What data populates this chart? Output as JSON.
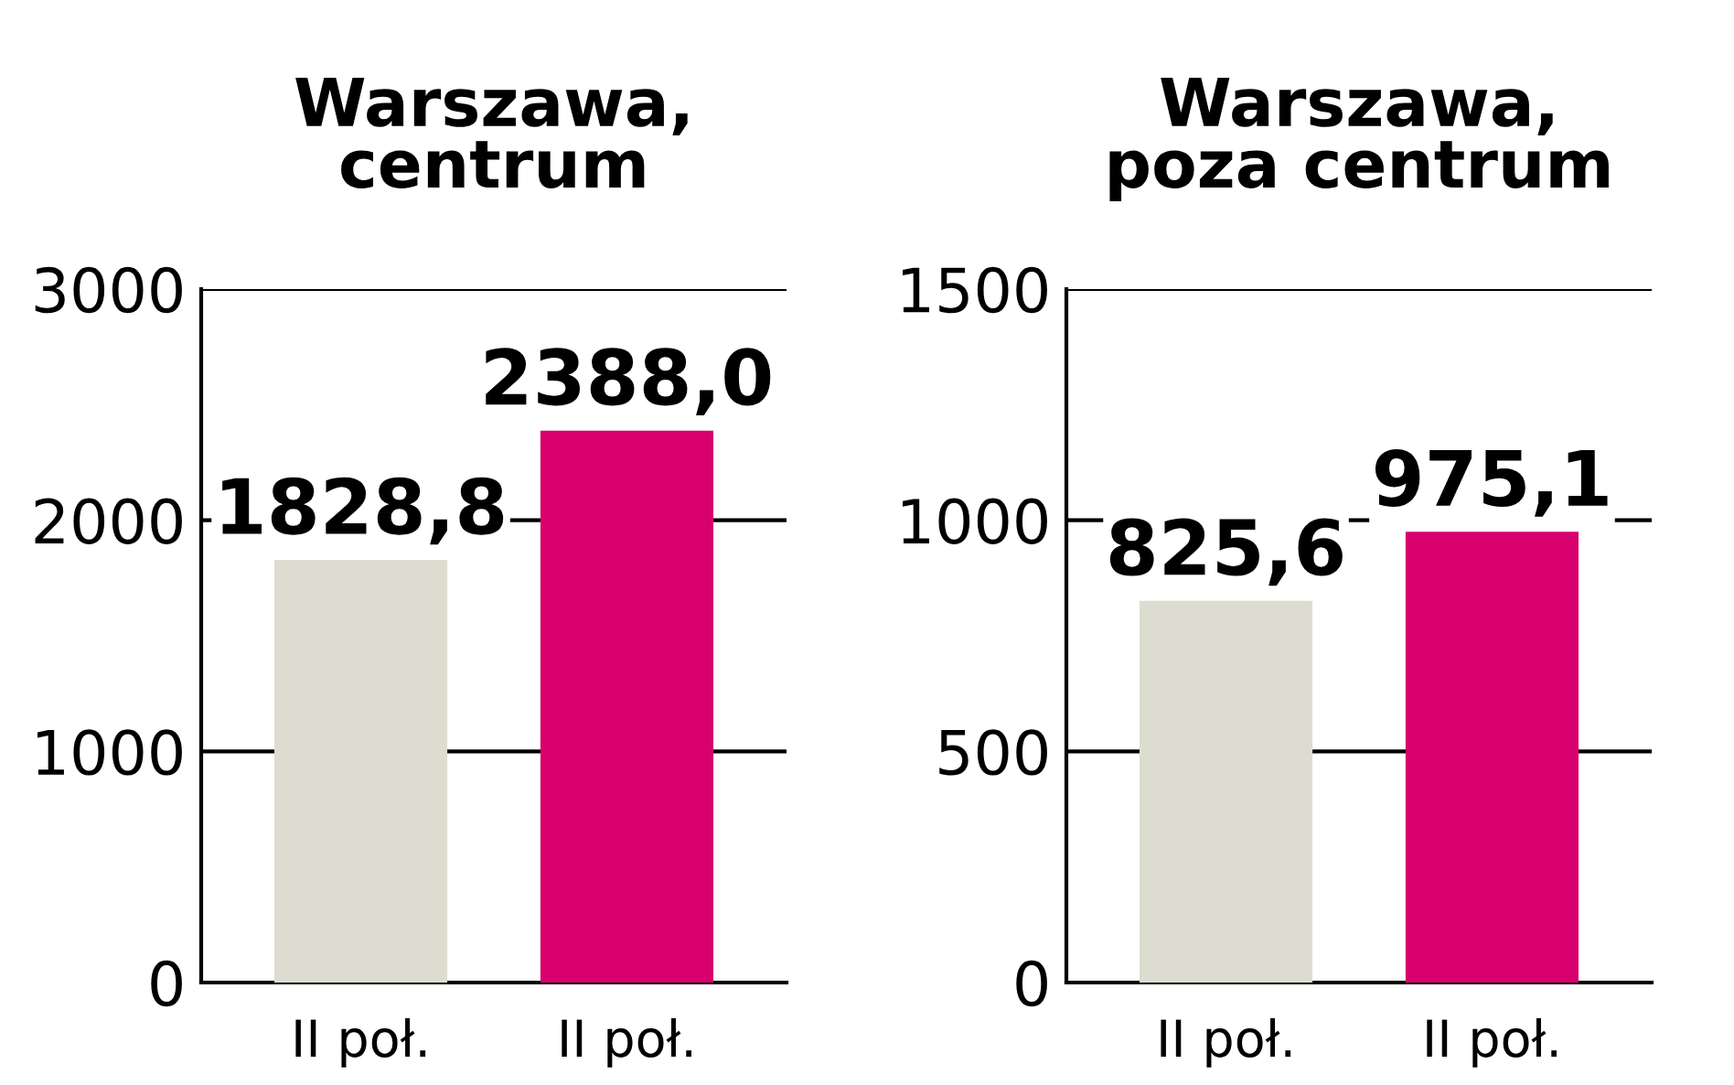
{
  "chart_data": [
    {
      "type": "bar",
      "title": "Warszawa,\ncentrum",
      "categories": [
        "II poł.",
        "II poł."
      ],
      "values": [
        1828.8,
        2388.0
      ],
      "colors": [
        "#dcdcd0",
        "#d8006c"
      ],
      "value_labels": [
        "1828,8",
        "2388,0"
      ],
      "ylim": [
        0,
        3000
      ],
      "yticks": [
        0,
        1000,
        2000,
        3000
      ],
      "grid": "y"
    },
    {
      "type": "bar",
      "title": "Warszawa,\npoza centrum",
      "categories": [
        "II poł.",
        "II poł."
      ],
      "values": [
        825.6,
        975.1
      ],
      "colors": [
        "#dcdcd0",
        "#d8006c"
      ],
      "value_labels": [
        "825,6",
        "975,1"
      ],
      "ylim": [
        0,
        1500
      ],
      "yticks": [
        0,
        500,
        1000,
        1500
      ],
      "grid": "y"
    }
  ]
}
